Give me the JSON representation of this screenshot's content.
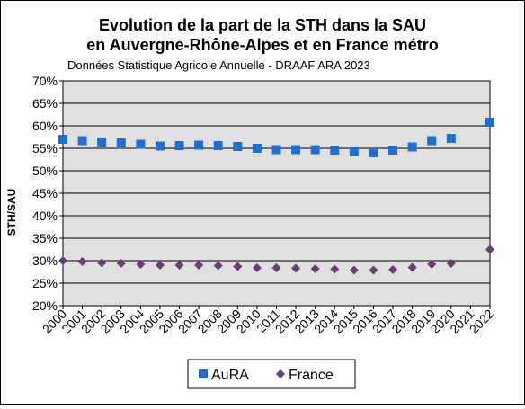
{
  "chart_data": {
    "type": "scatter",
    "title_line1": "Evolution de la part de la STH dans la SAU",
    "title_line2": "en Auvergne-Rhône-Alpes et en France métro",
    "subtitle": "Données Statistique Agricole Annuelle -  DRAAF ARA 2023",
    "xlabel": "",
    "ylabel": "STH/SAU",
    "categories": [
      "2000",
      "2001",
      "2002",
      "2003",
      "2004",
      "2005",
      "2006",
      "2007",
      "2008",
      "2009",
      "2010",
      "2011",
      "2012",
      "2013",
      "2014",
      "2015",
      "2016",
      "2017",
      "2018",
      "2019",
      "2020",
      "2021",
      "2022"
    ],
    "y_ticks": [
      "20%",
      "25%",
      "30%",
      "35%",
      "40%",
      "45%",
      "50%",
      "55%",
      "60%",
      "65%",
      "70%"
    ],
    "ylim": [
      20,
      70
    ],
    "grid": true,
    "legend_position": "bottom",
    "series": [
      {
        "name": "AuRA",
        "marker": "square",
        "color": "#1f6fcf",
        "values": [
          57.0,
          56.7,
          56.4,
          56.2,
          55.9,
          55.5,
          55.6,
          55.7,
          55.6,
          55.4,
          55.0,
          54.7,
          54.7,
          54.7,
          54.6,
          54.3,
          54.0,
          54.6,
          55.3,
          56.7,
          57.2,
          null,
          60.8
        ]
      },
      {
        "name": "France",
        "marker": "diamond",
        "color": "#6a3d74",
        "values": [
          30.0,
          29.8,
          29.5,
          29.4,
          29.2,
          29.0,
          29.0,
          29.0,
          28.9,
          28.7,
          28.4,
          28.4,
          28.3,
          28.2,
          28.1,
          27.9,
          27.9,
          28.0,
          28.5,
          29.2,
          29.4,
          null,
          32.5
        ]
      }
    ]
  },
  "colors": {
    "plot_background": "#e0e0e0",
    "border": "#000000"
  }
}
